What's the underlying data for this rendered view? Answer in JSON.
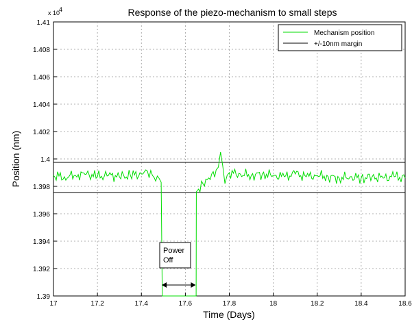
{
  "chart_data": {
    "type": "line",
    "title": "Response of the piezo-mechanism to small steps",
    "xlabel": "Time (Days)",
    "ylabel": "Position (nm)",
    "y_exponent_label": "x 10",
    "y_exponent_power": "4",
    "xlim": [
      17,
      18.6
    ],
    "ylim": [
      1.39,
      1.41
    ],
    "x_ticks": [
      "17",
      "17.2",
      "17.4",
      "17.6",
      "17.8",
      "18",
      "18.2",
      "18.4",
      "18.6"
    ],
    "y_ticks": [
      "1.39",
      "1.392",
      "1.394",
      "1.396",
      "1.398",
      "1.4",
      "1.402",
      "1.404",
      "1.406",
      "1.408",
      "1.41"
    ],
    "grid": true,
    "legend_position": "top-right",
    "series": [
      {
        "name": "Mechanism position",
        "color": "#00dd00",
        "x": [
          17.0,
          17.05,
          17.1,
          17.15,
          17.2,
          17.25,
          17.3,
          17.35,
          17.4,
          17.42,
          17.45,
          17.48,
          17.49,
          17.495,
          17.649,
          17.65,
          17.66,
          17.68,
          17.7,
          17.72,
          17.74,
          17.75,
          17.76,
          17.77,
          17.78,
          17.79,
          17.8,
          17.85,
          17.9,
          17.95,
          18.0,
          18.05,
          18.1,
          18.15,
          18.2,
          18.25,
          18.3,
          18.35,
          18.4,
          18.45,
          18.5,
          18.55,
          18.6
        ],
        "values": [
          1.3988,
          1.3987,
          1.3988,
          1.3989,
          1.3987,
          1.3988,
          1.3987,
          1.3988,
          1.3989,
          1.3992,
          1.3988,
          1.3986,
          1.3983,
          1.39,
          1.39,
          1.3976,
          1.3978,
          1.3982,
          1.3985,
          1.3989,
          1.3992,
          1.3994,
          1.4005,
          1.3995,
          1.3982,
          1.3988,
          1.399,
          1.3989,
          1.3988,
          1.3989,
          1.3988,
          1.3987,
          1.3989,
          1.3987,
          1.3988,
          1.3987,
          1.3986,
          1.3987,
          1.3986,
          1.3987,
          1.3986,
          1.3987,
          1.3986
        ]
      },
      {
        "name": "+/-10nm margin",
        "color": "#000000",
        "upper": 1.39975,
        "lower": 1.39755
      }
    ],
    "annotation": {
      "text_line1": "Power",
      "text_line2": "Off",
      "x_start": 17.49,
      "x_end": 17.65,
      "arrow_y": 1.3908
    }
  }
}
